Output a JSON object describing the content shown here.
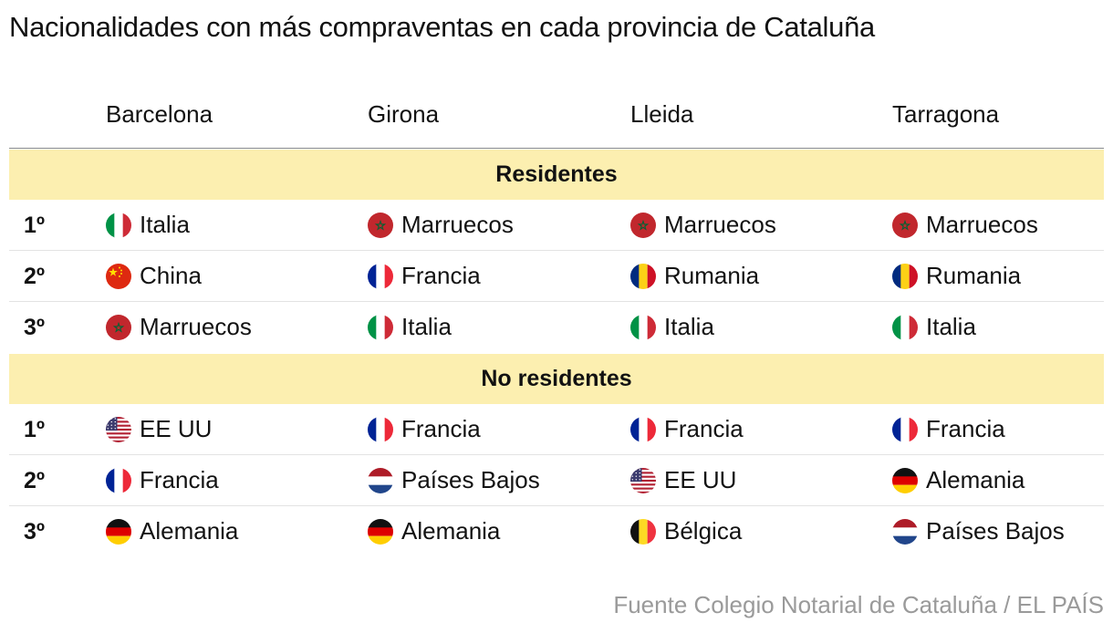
{
  "chart_data": {
    "type": "table",
    "title": "Nacionalidades con más compraventas en cada provincia de Cataluña",
    "columns": [
      "Barcelona",
      "Girona",
      "Lleida",
      "Tarragona"
    ],
    "sections": [
      {
        "label": "Residentes",
        "rows": [
          {
            "rank": "1º",
            "cells": [
              {
                "country": "Italia",
                "flag": "italy-flag-icon"
              },
              {
                "country": "Marruecos",
                "flag": "morocco-flag-icon"
              },
              {
                "country": "Marruecos",
                "flag": "morocco-flag-icon"
              },
              {
                "country": "Marruecos",
                "flag": "morocco-flag-icon"
              }
            ]
          },
          {
            "rank": "2º",
            "cells": [
              {
                "country": "China",
                "flag": "china-flag-icon"
              },
              {
                "country": "Francia",
                "flag": "france-flag-icon"
              },
              {
                "country": "Rumania",
                "flag": "romania-flag-icon"
              },
              {
                "country": "Rumania",
                "flag": "romania-flag-icon"
              }
            ]
          },
          {
            "rank": "3º",
            "cells": [
              {
                "country": "Marruecos",
                "flag": "morocco-flag-icon"
              },
              {
                "country": "Italia",
                "flag": "italy-flag-icon"
              },
              {
                "country": "Italia",
                "flag": "italy-flag-icon"
              },
              {
                "country": "Italia",
                "flag": "italy-flag-icon"
              }
            ]
          }
        ]
      },
      {
        "label": "No residentes",
        "rows": [
          {
            "rank": "1º",
            "cells": [
              {
                "country": "EE UU",
                "flag": "usa-flag-icon"
              },
              {
                "country": "Francia",
                "flag": "france-flag-icon"
              },
              {
                "country": "Francia",
                "flag": "france-flag-icon"
              },
              {
                "country": "Francia",
                "flag": "france-flag-icon"
              }
            ]
          },
          {
            "rank": "2º",
            "cells": [
              {
                "country": "Francia",
                "flag": "france-flag-icon"
              },
              {
                "country": "Países Bajos",
                "flag": "netherlands-flag-icon"
              },
              {
                "country": "EE UU",
                "flag": "usa-flag-icon"
              },
              {
                "country": "Alemania",
                "flag": "germany-flag-icon"
              }
            ]
          },
          {
            "rank": "3º",
            "cells": [
              {
                "country": "Alemania",
                "flag": "germany-flag-icon"
              },
              {
                "country": "Alemania",
                "flag": "germany-flag-icon"
              },
              {
                "country": "Bélgica",
                "flag": "belgium-flag-icon"
              },
              {
                "country": "Países Bajos",
                "flag": "netherlands-flag-icon"
              }
            ]
          }
        ]
      }
    ],
    "source": "Fuente Colegio Notarial de Cataluña / EL PAÍS"
  },
  "colors": {
    "section_background": "#fcefb0",
    "source_text": "#9a9a9a"
  }
}
